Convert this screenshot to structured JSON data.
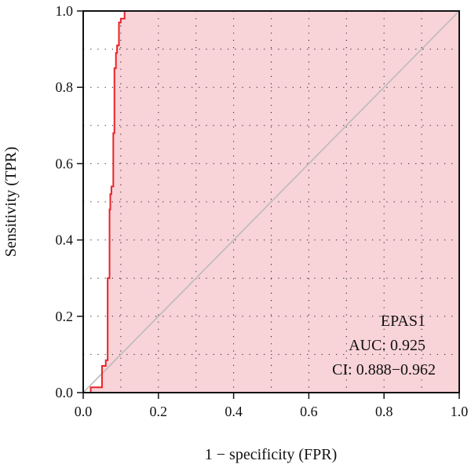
{
  "chart_data": {
    "type": "line",
    "title": "",
    "xlabel": "1 − specificity (FPR)",
    "ylabel": "Sensitivity (TPR)",
    "xlim": [
      0.0,
      1.0
    ],
    "ylim": [
      0.0,
      1.0
    ],
    "x_ticks": [
      "0.0",
      "0.2",
      "0.4",
      "0.6",
      "0.8",
      "1.0"
    ],
    "y_ticks": [
      "0.0",
      "0.2",
      "0.4",
      "0.6",
      "0.8",
      "1.0"
    ],
    "grid": "dotted",
    "diagonal_reference": true,
    "area_fill": true,
    "colors": {
      "curve": "#e8232a",
      "fill": "#f8d3d8",
      "diagonal": "#bbbbbb",
      "grid": "#222222",
      "axis": "#111111"
    },
    "annotations": {
      "gene": "EPAS1",
      "auc": "AUC: 0.925",
      "ci": "CI: 0.888−0.962"
    },
    "series": [
      {
        "x": [
          0.0,
          0.02,
          0.02,
          0.05,
          0.05,
          0.06,
          0.06,
          0.065,
          0.065,
          0.07,
          0.07,
          0.072,
          0.072,
          0.075,
          0.075,
          0.08,
          0.08,
          0.083,
          0.083,
          0.087,
          0.087,
          0.09,
          0.09,
          0.095,
          0.095,
          0.1,
          0.1,
          0.11,
          0.11,
          1.0
        ],
        "y": [
          0.0,
          0.0,
          0.014,
          0.014,
          0.07,
          0.07,
          0.085,
          0.085,
          0.3,
          0.3,
          0.48,
          0.48,
          0.52,
          0.52,
          0.54,
          0.54,
          0.68,
          0.68,
          0.85,
          0.85,
          0.89,
          0.89,
          0.91,
          0.91,
          0.97,
          0.97,
          0.98,
          0.98,
          1.0,
          1.0
        ]
      }
    ]
  }
}
